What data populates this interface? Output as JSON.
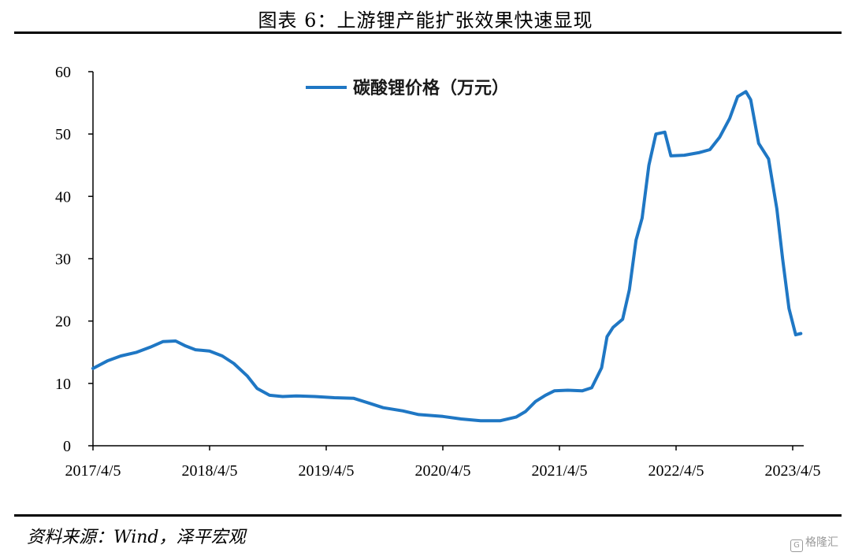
{
  "header": {
    "title": "图表 6：上游锂产能扩张效果快速显现"
  },
  "footer": {
    "source": "资料来源：Wind，泽平宏观",
    "watermark": "格隆汇",
    "watermark_icon": "G"
  },
  "colors": {
    "series": "#1f77c4",
    "axis": "#000000"
  },
  "chart_data": {
    "type": "line",
    "title": "",
    "xlabel": "",
    "ylabel": "",
    "ylim": [
      0,
      60
    ],
    "yticks": [
      0,
      10,
      20,
      30,
      40,
      50,
      60
    ],
    "xlim": [
      "2017-04-05",
      "2023-06-01"
    ],
    "xticks": [
      "2017/4/5",
      "2018/4/5",
      "2019/4/5",
      "2020/4/5",
      "2021/4/5",
      "2022/4/5",
      "2023/4/5"
    ],
    "legend": {
      "position": "top-center",
      "entries": [
        "碳酸锂价格（万元）"
      ]
    },
    "grid": false,
    "series": [
      {
        "name": "碳酸锂价格（万元）",
        "points": [
          [
            "2017-04-05",
            12.4
          ],
          [
            "2017-05-20",
            13.6
          ],
          [
            "2017-07-01",
            14.4
          ],
          [
            "2017-08-20",
            15.0
          ],
          [
            "2017-10-01",
            15.8
          ],
          [
            "2017-11-10",
            16.7
          ],
          [
            "2017-12-20",
            16.8
          ],
          [
            "2018-01-20",
            16.0
          ],
          [
            "2018-02-20",
            15.4
          ],
          [
            "2018-04-05",
            15.2
          ],
          [
            "2018-05-15",
            14.4
          ],
          [
            "2018-06-20",
            13.2
          ],
          [
            "2018-08-01",
            11.2
          ],
          [
            "2018-09-01",
            9.2
          ],
          [
            "2018-10-10",
            8.1
          ],
          [
            "2018-11-20",
            7.9
          ],
          [
            "2019-01-01",
            8.0
          ],
          [
            "2019-03-01",
            7.9
          ],
          [
            "2019-05-01",
            7.7
          ],
          [
            "2019-07-01",
            7.6
          ],
          [
            "2019-08-20",
            6.8
          ],
          [
            "2019-10-01",
            6.1
          ],
          [
            "2019-12-01",
            5.6
          ],
          [
            "2020-01-20",
            5.0
          ],
          [
            "2020-04-05",
            4.7
          ],
          [
            "2020-06-01",
            4.3
          ],
          [
            "2020-08-01",
            4.0
          ],
          [
            "2020-10-01",
            4.0
          ],
          [
            "2020-11-20",
            4.6
          ],
          [
            "2020-12-20",
            5.5
          ],
          [
            "2021-01-20",
            7.1
          ],
          [
            "2021-02-20",
            8.1
          ],
          [
            "2021-03-20",
            8.8
          ],
          [
            "2021-05-01",
            8.9
          ],
          [
            "2021-06-15",
            8.8
          ],
          [
            "2021-07-15",
            9.3
          ],
          [
            "2021-08-15",
            12.5
          ],
          [
            "2021-09-01",
            17.5
          ],
          [
            "2021-09-20",
            19.0
          ],
          [
            "2021-10-20",
            20.3
          ],
          [
            "2021-11-10",
            25.0
          ],
          [
            "2021-12-01",
            33.0
          ],
          [
            "2021-12-20",
            36.5
          ],
          [
            "2022-01-10",
            45.0
          ],
          [
            "2022-02-01",
            50.0
          ],
          [
            "2022-03-01",
            50.3
          ],
          [
            "2022-03-20",
            46.5
          ],
          [
            "2022-05-01",
            46.6
          ],
          [
            "2022-06-15",
            47.0
          ],
          [
            "2022-07-20",
            47.5
          ],
          [
            "2022-08-20",
            49.5
          ],
          [
            "2022-09-20",
            52.5
          ],
          [
            "2022-10-15",
            56.0
          ],
          [
            "2022-11-10",
            56.8
          ],
          [
            "2022-11-25",
            55.5
          ],
          [
            "2022-12-20",
            48.5
          ],
          [
            "2023-01-20",
            46.0
          ],
          [
            "2023-02-15",
            38.0
          ],
          [
            "2023-03-05",
            30.0
          ],
          [
            "2023-03-25",
            22.0
          ],
          [
            "2023-04-15",
            17.8
          ],
          [
            "2023-05-01",
            18.0
          ]
        ]
      }
    ]
  }
}
